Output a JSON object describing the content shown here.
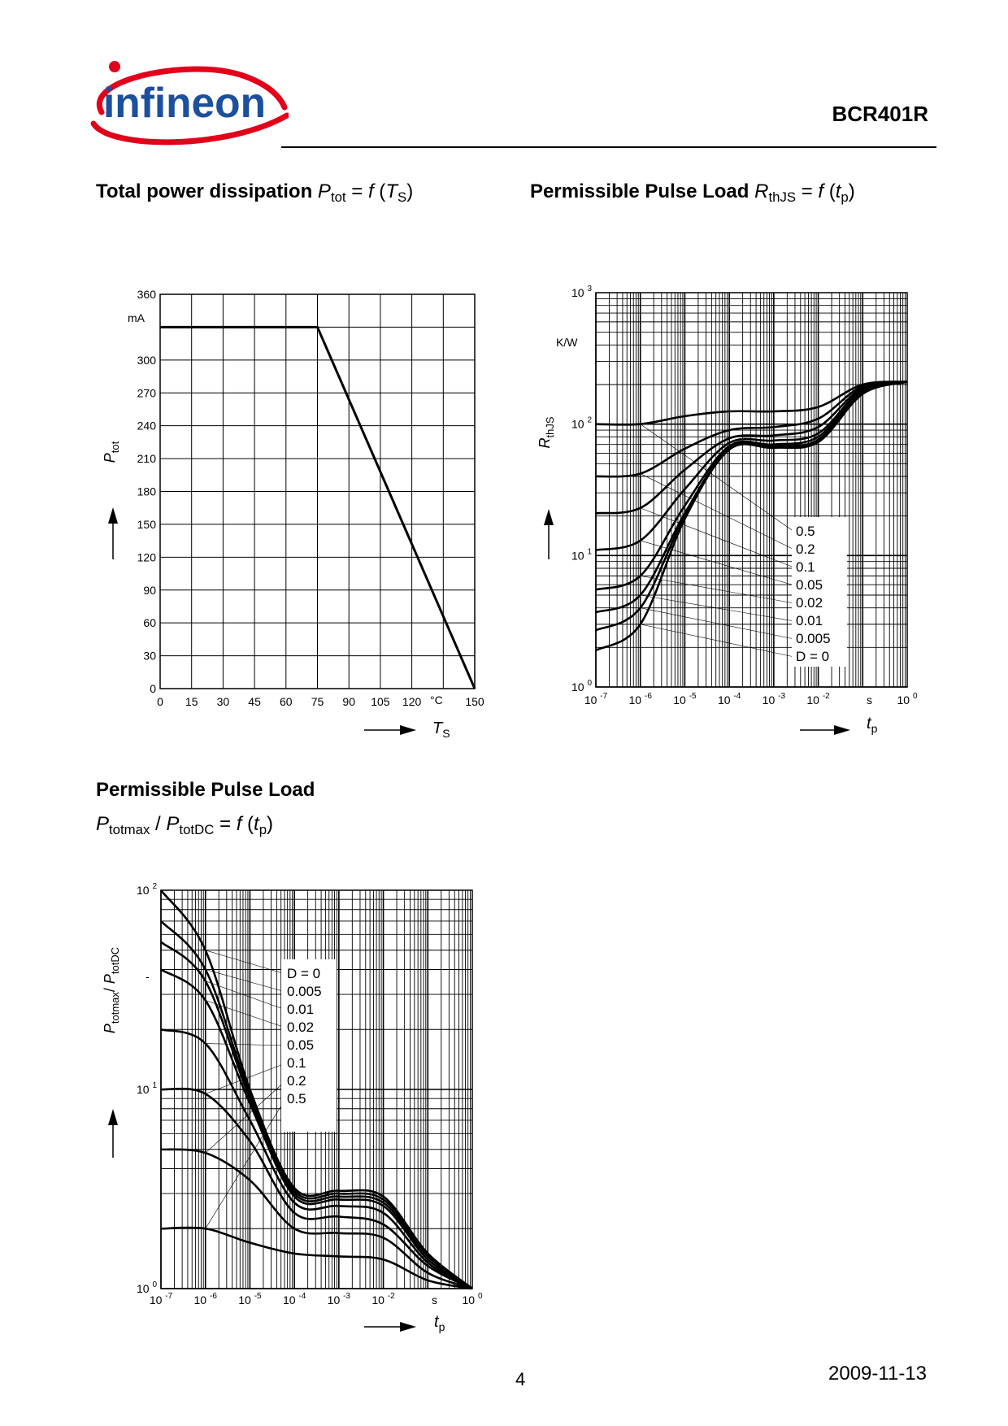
{
  "header": {
    "logo_text": "infineon",
    "part_number": "BCR401R"
  },
  "charts": [
    {
      "title_bold": "Total power dissipation",
      "title_formula": {
        "var": "P",
        "sub": "tot",
        "eq": " = ",
        "f": "f",
        "arg": "T",
        "arg_sub": "S"
      },
      "xaxis": {
        "var": "T",
        "sub": "S"
      },
      "yaxis": {
        "var": "P",
        "sub": "tot"
      },
      "y_unit": "mA",
      "x_unit": "°C",
      "x_ticks": [
        "0",
        "15",
        "30",
        "45",
        "60",
        "75",
        "90",
        "105",
        "120",
        "150"
      ],
      "y_ticks": [
        "0",
        "30",
        "60",
        "90",
        "120",
        "150",
        "180",
        "210",
        "240",
        "270",
        "300",
        "360"
      ]
    },
    {
      "title_bold": "Permissible Pulse Load",
      "title_formula": {
        "var": "R",
        "sub": "thJS",
        "eq": " = ",
        "f": "f",
        "arg": "t",
        "arg_sub": "p"
      },
      "xaxis": {
        "var": "t",
        "sub": "p"
      },
      "yaxis": {
        "var": "R",
        "sub": "thJS"
      },
      "y_unit": "K/W",
      "x_unit": "s",
      "x_ticks": [
        {
          "base": "10",
          "exp": "-7"
        },
        {
          "base": "10",
          "exp": "-6"
        },
        {
          "base": "10",
          "exp": "-5"
        },
        {
          "base": "10",
          "exp": "-4"
        },
        {
          "base": "10",
          "exp": "-3"
        },
        {
          "base": "10",
          "exp": "-2"
        },
        {
          "base": "10",
          "exp": "0"
        }
      ],
      "y_ticks": [
        {
          "base": "10",
          "exp": "0"
        },
        {
          "base": "10",
          "exp": "1"
        },
        {
          "base": "10",
          "exp": "2"
        },
        {
          "base": "10",
          "exp": "3"
        }
      ],
      "legend": [
        "0.5",
        "0.2",
        "0.1",
        "0.05",
        "0.02",
        "0.01",
        "0.005",
        "D = 0"
      ]
    },
    {
      "title_bold": "Permissible Pulse Load",
      "title_formula": {
        "var1": "P",
        "sub1": "totmax",
        "sep": " / ",
        "var2": "P",
        "sub2": "totDC",
        "eq": " = ",
        "f": "f",
        "arg": "t",
        "arg_sub": "p"
      },
      "xaxis": {
        "var": "t",
        "sub": "p"
      },
      "yaxis": {
        "var1": "P",
        "sub1": "totmax",
        "sep": "/ ",
        "var2": "P",
        "sub2": "totDC"
      },
      "y_unit": "-",
      "x_unit": "s",
      "x_ticks": [
        {
          "base": "10",
          "exp": "-7"
        },
        {
          "base": "10",
          "exp": "-6"
        },
        {
          "base": "10",
          "exp": "-5"
        },
        {
          "base": "10",
          "exp": "-4"
        },
        {
          "base": "10",
          "exp": "-3"
        },
        {
          "base": "10",
          "exp": "-2"
        },
        {
          "base": "10",
          "exp": "0"
        }
      ],
      "y_ticks": [
        {
          "base": "10",
          "exp": "0"
        },
        {
          "base": "10",
          "exp": "1"
        },
        {
          "base": "10",
          "exp": "2"
        }
      ],
      "legend": [
        "D = 0",
        "0.005",
        "0.01",
        "0.02",
        "0.05",
        "0.1",
        "0.2",
        "0.5"
      ]
    }
  ],
  "chart_data": [
    {
      "type": "line",
      "x": [
        0,
        75,
        150
      ],
      "series": [
        {
          "values": [
            330,
            330,
            0
          ]
        }
      ],
      "xlim": [
        0,
        150
      ],
      "ylim": [
        0,
        360
      ],
      "grid": true
    },
    {
      "type": "line",
      "log_x": true,
      "log_y": true,
      "xlim": [
        1e-07,
        1
      ],
      "ylim": [
        1,
        1000
      ],
      "grid": true,
      "x": [
        1e-07,
        1e-06,
        1e-05,
        0.0001,
        0.001,
        0.01,
        0.1,
        1
      ],
      "series": [
        {
          "name": "0.5",
          "values": [
            100,
            100,
            115,
            125,
            125,
            135,
            200,
            210
          ]
        },
        {
          "name": "0.2",
          "values": [
            40,
            42,
            65,
            90,
            95,
            110,
            195,
            210
          ]
        },
        {
          "name": "0.1",
          "values": [
            21,
            23,
            45,
            78,
            82,
            95,
            190,
            210
          ]
        },
        {
          "name": "0.05",
          "values": [
            11,
            13,
            32,
            72,
            75,
            85,
            185,
            210
          ]
        },
        {
          "name": "0.02",
          "values": [
            5.5,
            7,
            24,
            68,
            70,
            80,
            180,
            210
          ]
        },
        {
          "name": "0.01",
          "values": [
            3.7,
            5,
            21,
            66,
            68,
            76,
            175,
            210
          ]
        },
        {
          "name": "0.005",
          "values": [
            2.7,
            4,
            20,
            65,
            67,
            75,
            172,
            210
          ]
        },
        {
          "name": "D = 0",
          "values": [
            1.9,
            3,
            19,
            64,
            66,
            73,
            170,
            210
          ]
        }
      ]
    },
    {
      "type": "line",
      "log_x": true,
      "log_y": true,
      "xlim": [
        1e-07,
        1
      ],
      "ylim": [
        1,
        100
      ],
      "grid": true,
      "x": [
        1e-07,
        1e-06,
        1e-05,
        0.0001,
        0.001,
        0.01,
        0.1,
        1
      ],
      "series": [
        {
          "name": "D = 0",
          "values": [
            100,
            50,
            10,
            3.2,
            3.1,
            2.9,
            1.5,
            1
          ]
        },
        {
          "name": "0.005",
          "values": [
            70,
            40,
            9.5,
            3.1,
            3.0,
            2.8,
            1.5,
            1
          ]
        },
        {
          "name": "0.01",
          "values": [
            55,
            35,
            9,
            3.0,
            2.9,
            2.7,
            1.45,
            1
          ]
        },
        {
          "name": "0.02",
          "values": [
            40,
            28,
            8.5,
            2.9,
            2.8,
            2.6,
            1.4,
            1
          ]
        },
        {
          "name": "0.05",
          "values": [
            20,
            17,
            7,
            2.7,
            2.6,
            2.4,
            1.35,
            1
          ]
        },
        {
          "name": "0.1",
          "values": [
            10,
            9.5,
            5.5,
            2.4,
            2.3,
            2.1,
            1.3,
            1
          ]
        },
        {
          "name": "0.2",
          "values": [
            5,
            4.8,
            3.5,
            2.0,
            1.9,
            1.8,
            1.2,
            1
          ]
        },
        {
          "name": "0.5",
          "values": [
            2,
            2,
            1.7,
            1.5,
            1.45,
            1.4,
            1.1,
            1
          ]
        }
      ]
    }
  ],
  "footer": {
    "page": "4",
    "date": "2009-11-13"
  }
}
